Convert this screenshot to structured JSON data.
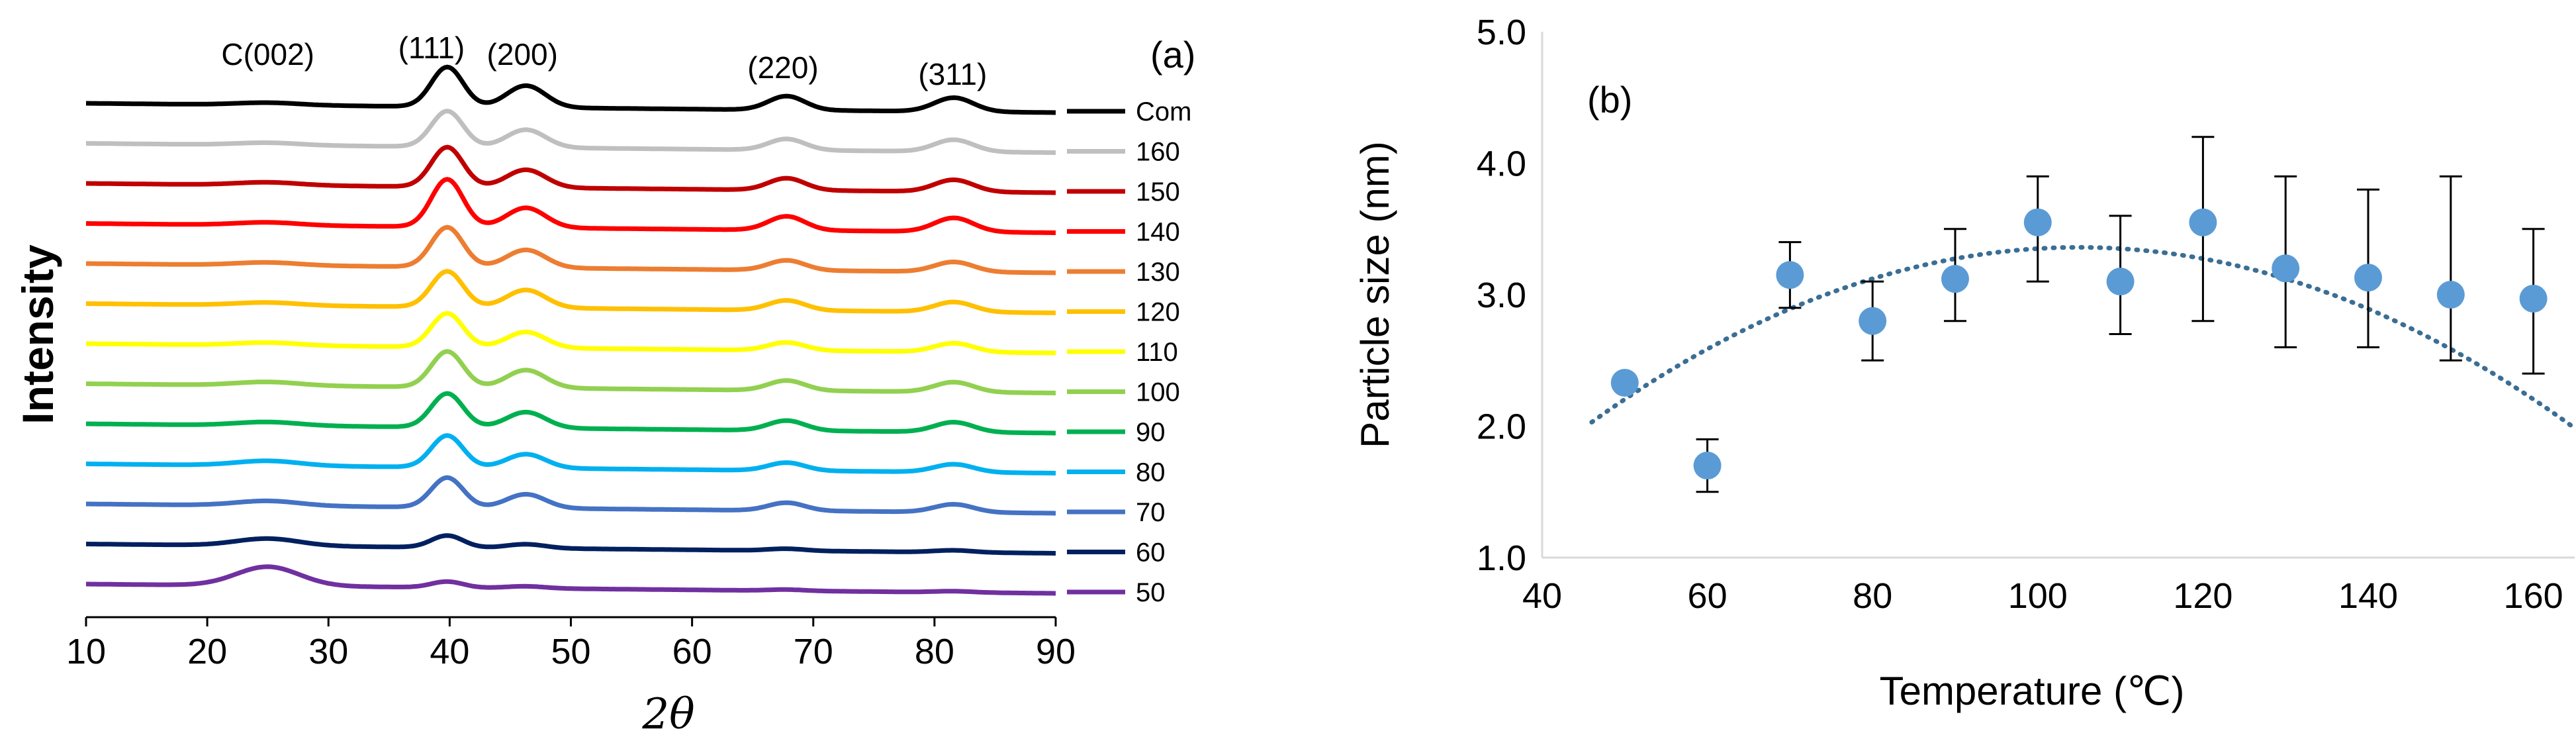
{
  "chart_data": [
    {
      "type": "line",
      "panel_label": "(a)",
      "ylabel": "Intensity",
      "xlabel": "2θ",
      "xlim": [
        10,
        90
      ],
      "x_ticks": [
        "10",
        "20",
        "30",
        "40",
        "50",
        "60",
        "70",
        "80",
        "90"
      ],
      "grid": false,
      "legend_position": "right",
      "peak_labels": [
        {
          "text": "C(002)",
          "x": 25
        },
        {
          "text": "(111)",
          "x": 38.5
        },
        {
          "text": "(200)",
          "x": 46
        },
        {
          "text": "(220)",
          "x": 67.5
        },
        {
          "text": "(311)",
          "x": 81.5
        }
      ],
      "series": [
        {
          "name": "Com",
          "color": "#000000",
          "p111": 1.0,
          "p200": 0.55,
          "p220": 0.35,
          "p311": 0.35,
          "c002": 0.1
        },
        {
          "name": "160",
          "color": "#bfbfbf",
          "p111": 0.9,
          "p200": 0.45,
          "p220": 0.28,
          "p311": 0.3,
          "c002": 0.1
        },
        {
          "name": "150",
          "color": "#c00000",
          "p111": 1.0,
          "p200": 0.45,
          "p220": 0.3,
          "p311": 0.3,
          "c002": 0.12
        },
        {
          "name": "140",
          "color": "#ff0000",
          "p111": 1.2,
          "p200": 0.5,
          "p220": 0.35,
          "p311": 0.35,
          "c002": 0.12
        },
        {
          "name": "130",
          "color": "#ed7d31",
          "p111": 1.0,
          "p200": 0.45,
          "p220": 0.25,
          "p311": 0.25,
          "c002": 0.12
        },
        {
          "name": "120",
          "color": "#ffc000",
          "p111": 0.9,
          "p200": 0.45,
          "p220": 0.25,
          "p311": 0.25,
          "c002": 0.12
        },
        {
          "name": "110",
          "color": "#ffff00",
          "p111": 0.85,
          "p200": 0.4,
          "p220": 0.2,
          "p311": 0.22,
          "c002": 0.12
        },
        {
          "name": "100",
          "color": "#92d050",
          "p111": 0.9,
          "p200": 0.45,
          "p220": 0.25,
          "p311": 0.25,
          "c002": 0.15
        },
        {
          "name": "90",
          "color": "#00b050",
          "p111": 0.85,
          "p200": 0.4,
          "p220": 0.25,
          "p311": 0.25,
          "c002": 0.15
        },
        {
          "name": "80",
          "color": "#00b0f0",
          "p111": 0.8,
          "p200": 0.35,
          "p220": 0.2,
          "p311": 0.2,
          "c002": 0.2
        },
        {
          "name": "70",
          "color": "#4472c4",
          "p111": 0.75,
          "p200": 0.35,
          "p220": 0.2,
          "p311": 0.2,
          "c002": 0.2
        },
        {
          "name": "60",
          "color": "#002060",
          "p111": 0.3,
          "p200": 0.1,
          "p220": 0.05,
          "p311": 0.05,
          "c002": 0.3
        },
        {
          "name": "50",
          "color": "#7030a0",
          "p111": 0.15,
          "p200": 0.05,
          "p220": 0.03,
          "p311": 0.03,
          "c002": 0.8
        }
      ]
    },
    {
      "type": "scatter",
      "panel_label": "(b)",
      "xlabel": "Temperature (℃)",
      "ylabel": "Particle size (nm)",
      "xlim": [
        40,
        165
      ],
      "ylim": [
        1.0,
        5.0
      ],
      "x_ticks": [
        "40",
        "60",
        "80",
        "100",
        "120",
        "140",
        "160"
      ],
      "y_ticks": [
        "1.0",
        "2.0",
        "3.0",
        "4.0",
        "5.0"
      ],
      "grid": false,
      "point_color": "#5b9bd5",
      "trend_color": "#3b6e94",
      "points": [
        {
          "x": 50,
          "y": 2.33
        },
        {
          "x": 60,
          "y": 1.7,
          "err_low": 0.2,
          "err_high": 0.2
        },
        {
          "x": 70,
          "y": 3.15,
          "err_low": 0.25,
          "err_high": 0.25
        },
        {
          "x": 80,
          "y": 2.8,
          "err_low": 0.3,
          "err_high": 0.3
        },
        {
          "x": 90,
          "y": 3.12,
          "err_low": 0.32,
          "err_high": 0.38
        },
        {
          "x": 100,
          "y": 3.55,
          "err_low": 0.45,
          "err_high": 0.35
        },
        {
          "x": 110,
          "y": 3.1,
          "err_low": 0.4,
          "err_high": 0.5
        },
        {
          "x": 120,
          "y": 3.55,
          "err_low": 0.75,
          "err_high": 0.65
        },
        {
          "x": 130,
          "y": 3.2,
          "err_low": 0.6,
          "err_high": 0.7
        },
        {
          "x": 140,
          "y": 3.13,
          "err_low": 0.53,
          "err_high": 0.67
        },
        {
          "x": 150,
          "y": 3.0,
          "err_low": 0.5,
          "err_high": 0.9
        },
        {
          "x": 160,
          "y": 2.97,
          "err_low": 0.57,
          "err_high": 0.53
        }
      ],
      "trend": {
        "type": "polynomial",
        "order": 2,
        "x_range": [
          46,
          165
        ],
        "vertex_x": 105,
        "vertex_y": 3.36
      }
    }
  ]
}
